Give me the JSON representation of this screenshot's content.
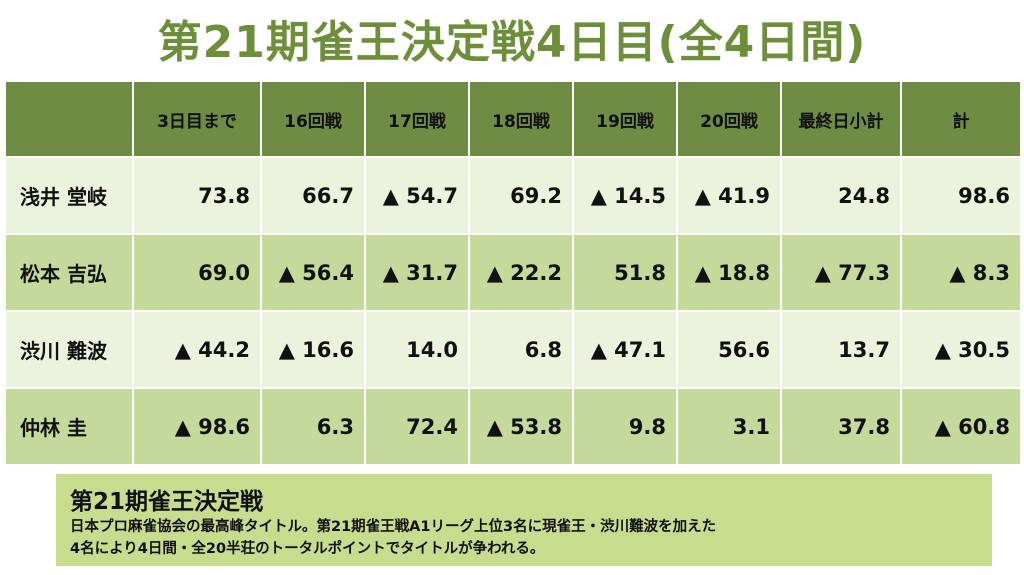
{
  "title": "第21期雀王決定戦4日目(全4日間)",
  "table": {
    "headers": [
      "",
      "3日目まで",
      "16回戦",
      "17回戦",
      "18回戦",
      "19回戦",
      "20回戦",
      "最終日小計",
      "計"
    ],
    "rows": [
      {
        "name": "浅井 堂岐",
        "cells": [
          "73.8",
          "66.7",
          "▲ 54.7",
          "69.2",
          "▲ 14.5",
          "▲ 41.9",
          "24.8",
          "98.6"
        ]
      },
      {
        "name": "松本 吉弘",
        "cells": [
          "69.0",
          "▲ 56.4",
          "▲ 31.7",
          "▲ 22.2",
          "51.8",
          "▲ 18.8",
          "▲ 77.3",
          "▲ 8.3"
        ]
      },
      {
        "name": "渋川 難波",
        "cells": [
          "▲ 44.2",
          "▲ 16.6",
          "14.0",
          "6.8",
          "▲ 47.1",
          "56.6",
          "13.7",
          "▲ 30.5"
        ]
      },
      {
        "name": "仲林 圭",
        "cells": [
          "▲ 98.6",
          "6.3",
          "72.4",
          "▲ 53.8",
          "9.8",
          "3.1",
          "37.8",
          "▲ 60.8"
        ]
      }
    ]
  },
  "info": {
    "title": "第21期雀王決定戦",
    "line1": "日本プロ麻雀協会の最高峰タイトル。第21期雀王戦A1リーグ上位3名に現雀王・渋川難波を加えた",
    "line2": "4名により4日間・全20半荘のトータルポイントでタイトルが争われる。"
  },
  "colors": {
    "title": "#6e8f3a",
    "header_bg": "#6e8c43",
    "row_light": "#ecf3dd",
    "row_dark": "#c5d99b",
    "info_bg": "#c8dc8e"
  }
}
